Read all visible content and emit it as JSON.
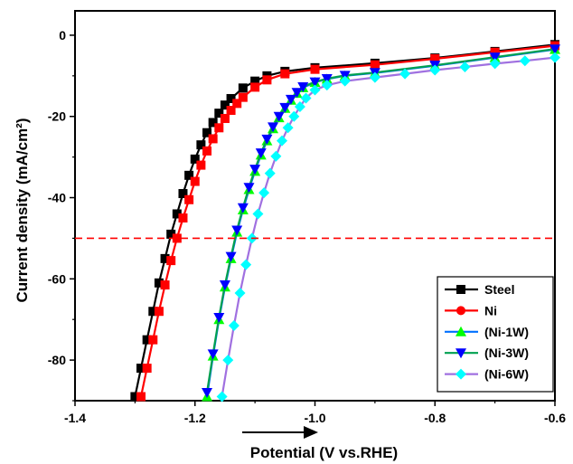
{
  "chart_data": {
    "type": "line",
    "title": "",
    "xlabel": "Potential (V vs.RHE)",
    "ylabel": "Current density (mA/cm²)",
    "xlim": [
      -1.4,
      -0.6
    ],
    "ylim": [
      -90,
      6
    ],
    "xticks": [
      -1.4,
      -1.2,
      -1.0,
      -0.8,
      -0.6
    ],
    "xtick_labels": [
      "-1.4",
      "-1.2",
      "-1.0",
      "-0.8",
      "-0.6"
    ],
    "yticks": [
      0,
      -20,
      -40,
      -60,
      -80
    ],
    "ytick_labels": [
      "0",
      "-20",
      "-40",
      "-60",
      "-80"
    ],
    "reference_line": {
      "y": -50,
      "color": "#ff0000",
      "style": "dashed"
    },
    "legend_position": "bottom-right",
    "series": [
      {
        "name": "Steel",
        "color": "#000000",
        "line_color": "#000000",
        "marker": "square",
        "x": [
          -1.3,
          -1.29,
          -1.28,
          -1.27,
          -1.26,
          -1.25,
          -1.24,
          -1.23,
          -1.22,
          -1.21,
          -1.2,
          -1.19,
          -1.18,
          -1.17,
          -1.16,
          -1.15,
          -1.14,
          -1.12,
          -1.1,
          -1.08,
          -1.05,
          -1.0,
          -0.9,
          -0.8,
          -0.7,
          -0.6
        ],
        "y": [
          -89,
          -82,
          -75,
          -68,
          -61,
          -55,
          -49,
          -44,
          -39,
          -34.5,
          -30.5,
          -27,
          -24,
          -21.5,
          -19.2,
          -17.2,
          -15.6,
          -13,
          -11.3,
          -10,
          -8.9,
          -8,
          -6.9,
          -5.6,
          -4,
          -2.3
        ]
      },
      {
        "name": "Ni",
        "color": "#ff0000",
        "line_color": "#ff0000",
        "marker": "square",
        "x": [
          -1.29,
          -1.28,
          -1.27,
          -1.26,
          -1.25,
          -1.24,
          -1.23,
          -1.22,
          -1.21,
          -1.2,
          -1.19,
          -1.18,
          -1.17,
          -1.16,
          -1.15,
          -1.14,
          -1.13,
          -1.12,
          -1.1,
          -1.08,
          -1.05,
          -1.0,
          -0.9,
          -0.8,
          -0.7,
          -0.6
        ],
        "y": [
          -89,
          -82,
          -75,
          -68,
          -61.5,
          -55.5,
          -50,
          -45,
          -40.5,
          -36,
          -32,
          -28.5,
          -25.5,
          -22.8,
          -20.5,
          -18.5,
          -16.8,
          -15.3,
          -12.8,
          -11,
          -9.5,
          -8.4,
          -7.3,
          -5.8,
          -4.2,
          -2.6
        ]
      },
      {
        "name": "(Ni-1W)",
        "color": "#00ff00",
        "line_color": "#0070ff",
        "marker": "triangle-up",
        "x": [
          -1.18,
          -1.17,
          -1.16,
          -1.15,
          -1.14,
          -1.13,
          -1.12,
          -1.11,
          -1.1,
          -1.09,
          -1.08,
          -1.07,
          -1.06,
          -1.05,
          -1.04,
          -1.03,
          -1.02,
          -1.0,
          -0.98,
          -0.95,
          -0.9,
          -0.8,
          -0.7,
          -0.6
        ],
        "y": [
          -89,
          -79,
          -70,
          -62,
          -55,
          -48.5,
          -43,
          -38,
          -33.5,
          -29.5,
          -26,
          -23,
          -20.3,
          -18,
          -16,
          -14.3,
          -12.9,
          -11.6,
          -10.8,
          -10,
          -9.3,
          -7.5,
          -5.5,
          -3.5
        ]
      },
      {
        "name": "(Ni-3W)",
        "color": "#0000ff",
        "line_color": "#00a050",
        "marker": "triangle-down",
        "x": [
          -1.18,
          -1.17,
          -1.16,
          -1.15,
          -1.14,
          -1.13,
          -1.12,
          -1.11,
          -1.1,
          -1.09,
          -1.08,
          -1.07,
          -1.06,
          -1.05,
          -1.04,
          -1.03,
          -1.02,
          -1.0,
          -0.98,
          -0.95,
          -0.9,
          -0.8,
          -0.7,
          -0.6
        ],
        "y": [
          -88,
          -78.5,
          -69.5,
          -61.5,
          -54.5,
          -48,
          -42.5,
          -37.5,
          -33,
          -29,
          -25.6,
          -22.6,
          -20,
          -17.8,
          -15.8,
          -14.1,
          -12.7,
          -11.5,
          -10.7,
          -9.9,
          -9.2,
          -7.4,
          -5.4,
          -3.4
        ]
      },
      {
        "name": "(Ni-6W)",
        "color": "#00ffff",
        "line_color": "#a070e0",
        "marker": "diamond",
        "x": [
          -1.155,
          -1.145,
          -1.135,
          -1.125,
          -1.115,
          -1.105,
          -1.095,
          -1.085,
          -1.075,
          -1.065,
          -1.055,
          -1.045,
          -1.035,
          -1.025,
          -1.015,
          -1.0,
          -0.98,
          -0.95,
          -0.9,
          -0.85,
          -0.8,
          -0.75,
          -0.7,
          -0.65,
          -0.6
        ],
        "y": [
          -89,
          -80,
          -71.5,
          -63.5,
          -56.5,
          -50,
          -44,
          -38.8,
          -34,
          -29.8,
          -26,
          -22.8,
          -20,
          -17.6,
          -15.5,
          -13.5,
          -12.3,
          -11.3,
          -10.4,
          -9.5,
          -8.6,
          -7.8,
          -7,
          -6.3,
          -5.5
        ]
      }
    ]
  }
}
